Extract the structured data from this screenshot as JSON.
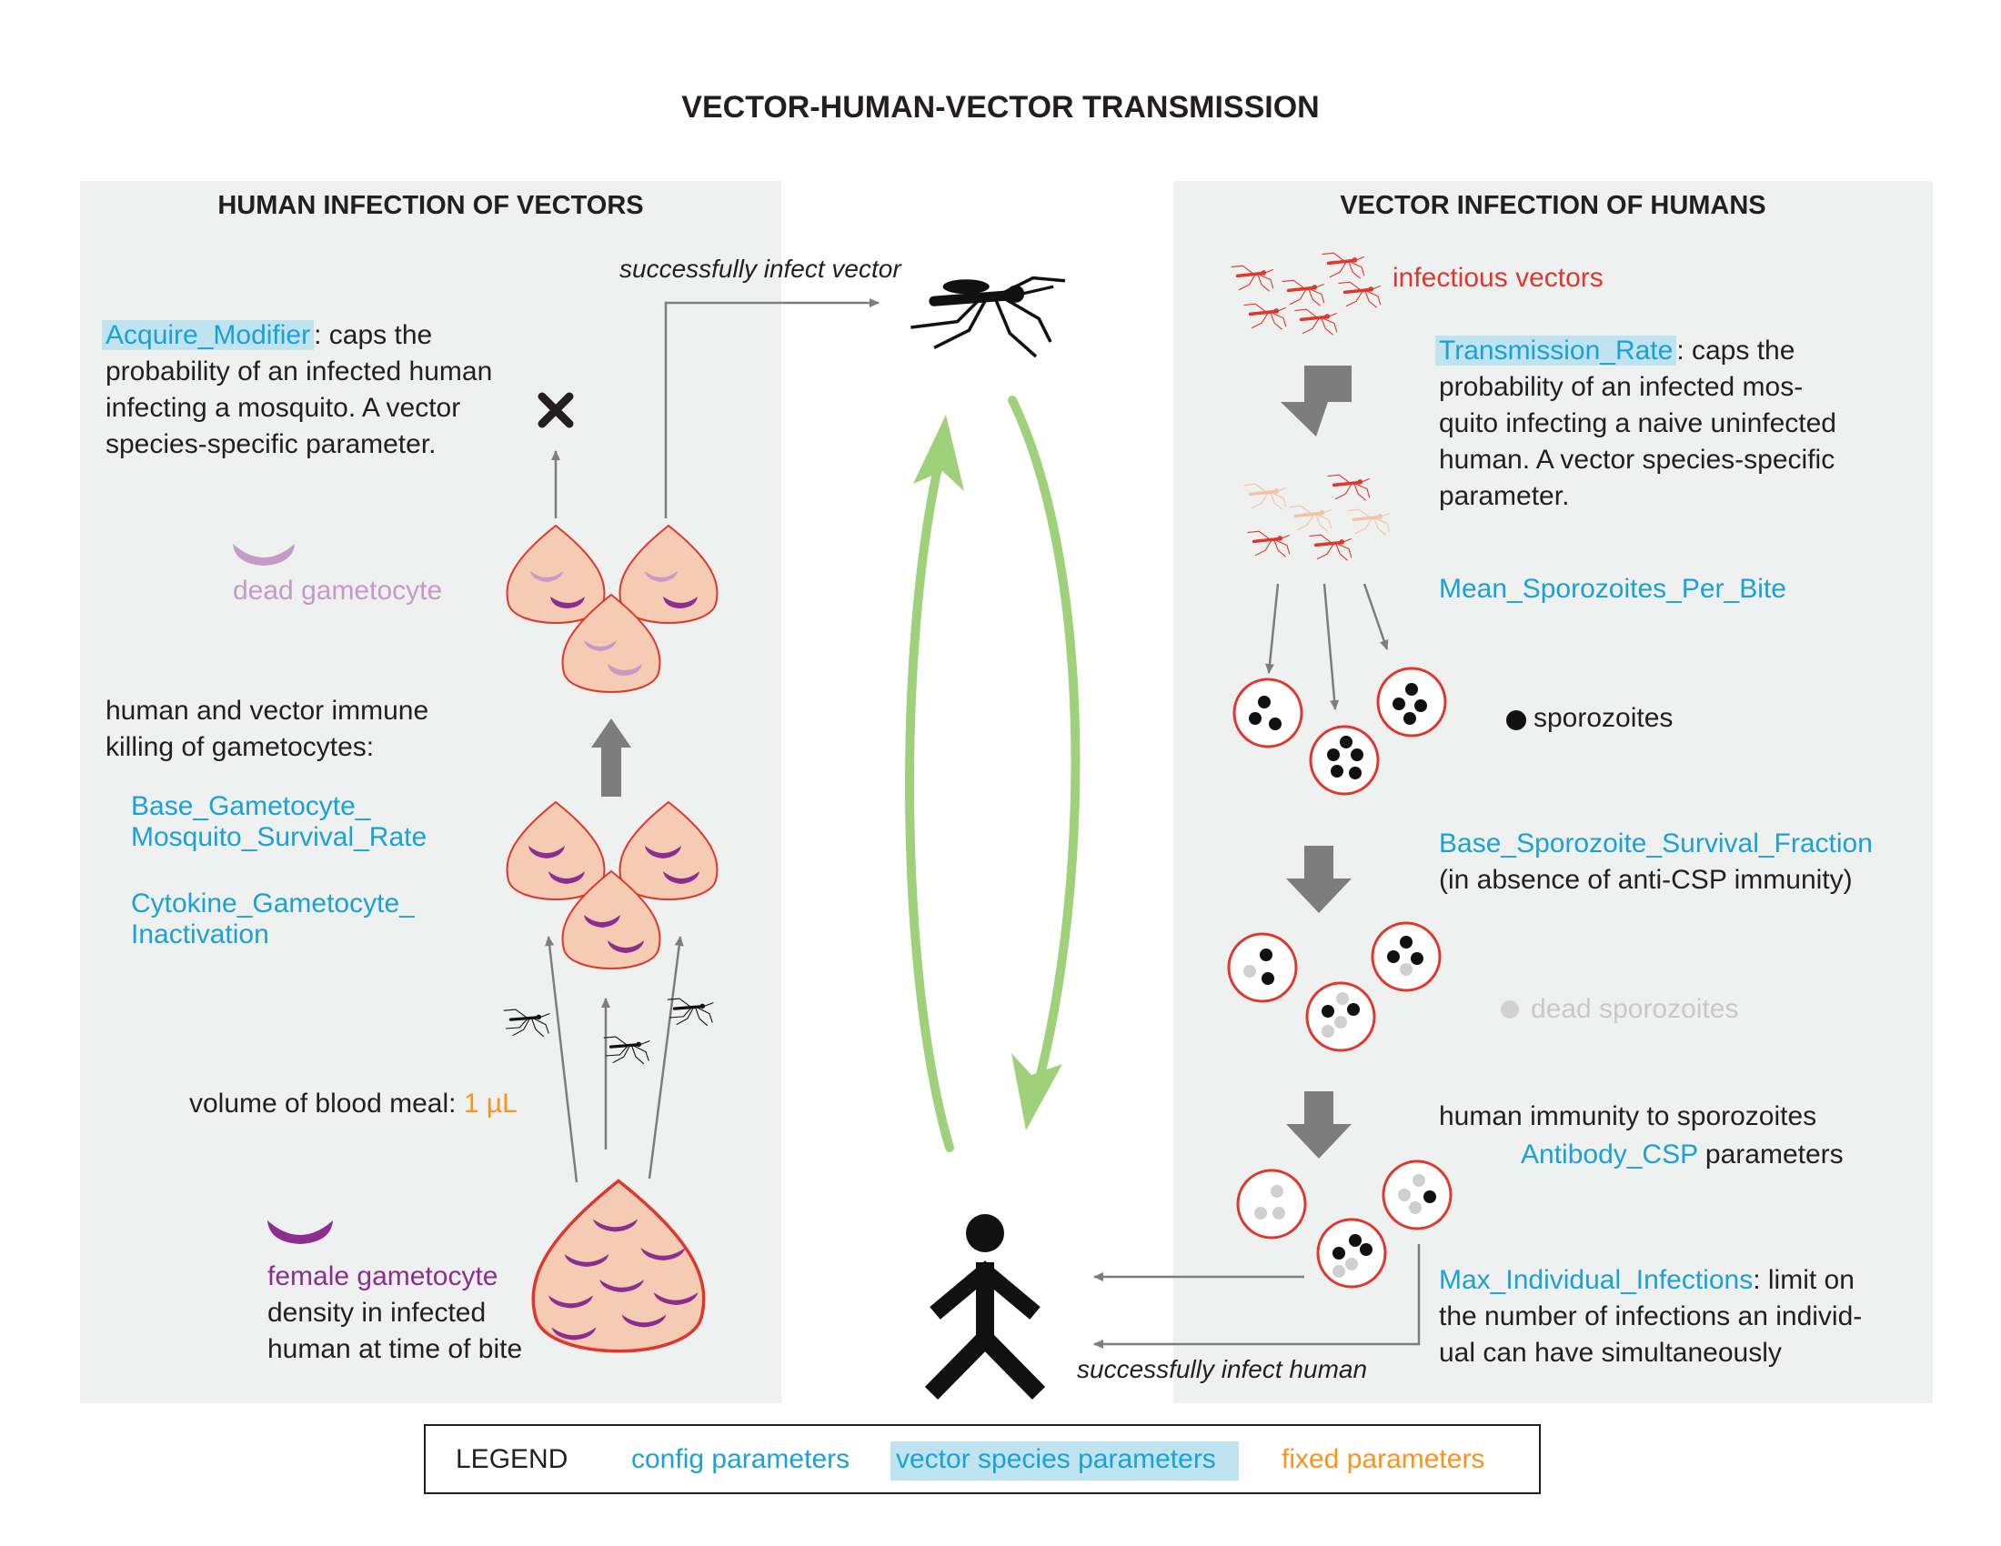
{
  "title": "VECTOR-HUMAN-VECTOR TRANSMISSION",
  "left_panel": {
    "heading": "HUMAN INFECTION OF VECTORS",
    "acquire_param": "Acquire_Modifier",
    "acquire_desc": [
      ": caps the",
      "probability of an infected human",
      "infecting a mosquito. A vector",
      "species-specific parameter."
    ],
    "dead_gametocyte": "dead gametocyte",
    "immune_killing": [
      "human and vector immune",
      "killing of gametocytes:"
    ],
    "base_gametocyte": [
      "Base_Gametocyte_",
      "Mosquito_Survival_Rate"
    ],
    "cytokine": [
      "Cytokine_Gametocyte_",
      "Inactivation"
    ],
    "blood_meal_label": "volume of blood meal: ",
    "blood_meal_value": "1 µL",
    "female_gametocyte": "female gametocyte",
    "density_lines": [
      "density in infected",
      "human at time of bite"
    ]
  },
  "center": {
    "infect_vector": "successfully infect vector",
    "infect_human": "successfully infect human"
  },
  "right_panel": {
    "heading": "VECTOR INFECTION OF HUMANS",
    "infectious_vectors": "infectious vectors",
    "transmission_param": "Transmission_Rate",
    "transmission_desc": [
      ": caps the",
      "probability of an infected mos-",
      "quito infecting a naive uninfected",
      "human. A vector species-specific",
      "parameter."
    ],
    "mean_sporozoites": "Mean_Sporozoites_Per_Bite",
    "sporozoites": "sporozoites",
    "base_sporozoite": "Base_Sporozoite_Survival_Fraction",
    "absence_note": "(in absence of anti-CSP immunity)",
    "dead_sporozoites": "dead sporozoites",
    "human_immunity": "human immunity to sporozoites",
    "antibody_param": "Antibody_CSP",
    "antibody_suffix": " parameters",
    "max_param": "Max_Individual_Infections",
    "max_desc": [
      ": limit on",
      "the number of infections an individ-",
      "ual can have simultaneously"
    ]
  },
  "legend": {
    "label": "LEGEND",
    "config": "config parameters",
    "vector_species": "vector species parameters",
    "fixed": "fixed parameters"
  },
  "colors": {
    "config_blue": "#1ba1d6",
    "vector_highlight": "#bfe3ef",
    "fixed_orange": "#f7941d",
    "infectious_red": "#e0362c",
    "gametocyte_purple": "#8b2e8f",
    "dead_gametocyte": "#c49ac6",
    "cell_fill": "#f6cbb4",
    "cycle_green": "#9fd17a",
    "panel_gray": "#eff0f0"
  }
}
